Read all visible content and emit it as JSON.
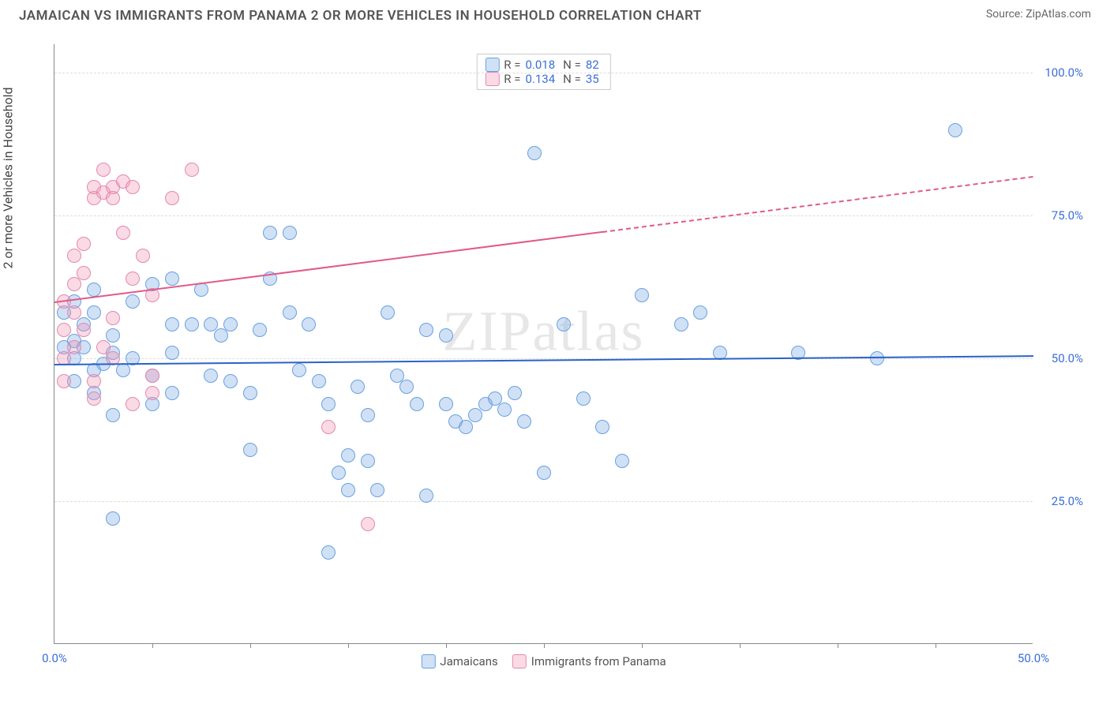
{
  "header": {
    "title": "JAMAICAN VS IMMIGRANTS FROM PANAMA 2 OR MORE VEHICLES IN HOUSEHOLD CORRELATION CHART",
    "source": "Source: ZipAtlas.com"
  },
  "watermark": "ZIPatlas",
  "chart": {
    "type": "scatter",
    "ylabel": "2 or more Vehicles in Household",
    "background_color": "#ffffff",
    "grid_color": "#dddddd",
    "axis_color": "#888888",
    "tick_color": "#3b6fd6",
    "tick_fontsize": 15,
    "label_fontsize": 16,
    "xlim": [
      0,
      50
    ],
    "ylim": [
      0,
      105
    ],
    "yticks": [
      {
        "v": 25,
        "label": "25.0%"
      },
      {
        "v": 50,
        "label": "50.0%"
      },
      {
        "v": 75,
        "label": "75.0%"
      },
      {
        "v": 100,
        "label": "100.0%"
      }
    ],
    "xticks_major": [
      {
        "v": 0,
        "label": "0.0%"
      },
      {
        "v": 50,
        "label": "50.0%"
      }
    ],
    "xticks_minor": [
      5,
      10,
      15,
      20,
      25,
      30,
      35,
      40,
      45
    ],
    "marker_radius": 9,
    "marker_stroke": 1.5,
    "series": [
      {
        "id": "jamaicans",
        "label": "Jamaicans",
        "fill": "rgba(120,170,230,0.35)",
        "stroke": "#6aa0e0",
        "r_value": "0.018",
        "n_value": "82",
        "trend": {
          "x1": 0,
          "y1": 49,
          "x2": 50,
          "y2": 50.5,
          "color": "#2b62c9",
          "solid_to_x": 50
        },
        "points": [
          [
            3,
            22
          ],
          [
            3,
            51
          ],
          [
            2,
            48
          ],
          [
            1,
            53
          ],
          [
            1,
            50
          ],
          [
            1.5,
            56
          ],
          [
            1,
            60
          ],
          [
            2,
            58
          ],
          [
            1.5,
            52
          ],
          [
            2.5,
            49
          ],
          [
            3,
            54
          ],
          [
            4,
            50
          ],
          [
            4,
            60
          ],
          [
            5,
            63
          ],
          [
            6,
            64
          ],
          [
            6,
            56
          ],
          [
            6,
            51
          ],
          [
            5,
            47
          ],
          [
            5,
            42
          ],
          [
            6,
            44
          ],
          [
            7,
            56
          ],
          [
            7.5,
            62
          ],
          [
            8,
            47
          ],
          [
            8,
            56
          ],
          [
            8.5,
            54
          ],
          [
            9,
            46
          ],
          [
            9,
            56
          ],
          [
            10,
            44
          ],
          [
            10,
            34
          ],
          [
            10.5,
            55
          ],
          [
            11,
            64
          ],
          [
            11,
            72
          ],
          [
            12,
            72
          ],
          [
            12,
            58
          ],
          [
            12.5,
            48
          ],
          [
            13,
            56
          ],
          [
            13.5,
            46
          ],
          [
            14,
            42
          ],
          [
            14,
            16
          ],
          [
            14.5,
            30
          ],
          [
            15,
            27
          ],
          [
            15,
            33
          ],
          [
            15.5,
            45
          ],
          [
            16,
            40
          ],
          [
            16,
            32
          ],
          [
            16.5,
            27
          ],
          [
            17,
            58
          ],
          [
            17.5,
            47
          ],
          [
            18,
            45
          ],
          [
            18.5,
            42
          ],
          [
            19,
            26
          ],
          [
            19,
            55
          ],
          [
            20,
            42
          ],
          [
            20,
            54
          ],
          [
            20.5,
            39
          ],
          [
            21,
            38
          ],
          [
            21.5,
            40
          ],
          [
            22,
            42
          ],
          [
            22.5,
            43
          ],
          [
            23,
            41
          ],
          [
            23.5,
            44
          ],
          [
            24,
            39
          ],
          [
            24.5,
            86
          ],
          [
            25,
            30
          ],
          [
            26,
            56
          ],
          [
            27,
            43
          ],
          [
            28,
            38
          ],
          [
            29,
            32
          ],
          [
            30,
            61
          ],
          [
            32,
            56
          ],
          [
            33,
            58
          ],
          [
            34,
            51
          ],
          [
            38,
            51
          ],
          [
            42,
            50
          ],
          [
            46,
            90
          ],
          [
            2,
            44
          ],
          [
            3,
            40
          ],
          [
            1,
            46
          ],
          [
            0.5,
            52
          ],
          [
            0.5,
            58
          ],
          [
            2,
            62
          ],
          [
            3.5,
            48
          ]
        ]
      },
      {
        "id": "panama",
        "label": "Immigrants from Panama",
        "fill": "rgba(240,150,180,0.35)",
        "stroke": "#e389ae",
        "r_value": "0.134",
        "n_value": "35",
        "trend": {
          "x1": 0,
          "y1": 60,
          "x2": 50,
          "y2": 82,
          "color": "#e15a8a",
          "solid_to_x": 28
        },
        "points": [
          [
            0.5,
            55
          ],
          [
            0.5,
            60
          ],
          [
            1,
            63
          ],
          [
            1,
            68
          ],
          [
            1,
            58
          ],
          [
            1.5,
            70
          ],
          [
            1.5,
            65
          ],
          [
            2,
            78
          ],
          [
            2,
            80
          ],
          [
            2.5,
            79
          ],
          [
            2.5,
            83
          ],
          [
            3,
            80
          ],
          [
            3,
            78
          ],
          [
            3.5,
            81
          ],
          [
            4,
            80
          ],
          [
            4,
            64
          ],
          [
            5,
            61
          ],
          [
            5,
            47
          ],
          [
            5,
            44
          ],
          [
            2,
            46
          ],
          [
            2,
            43
          ],
          [
            4,
            42
          ],
          [
            3,
            50
          ],
          [
            3,
            57
          ],
          [
            6,
            78
          ],
          [
            7,
            83
          ],
          [
            14,
            38
          ],
          [
            16,
            21
          ],
          [
            1,
            52
          ],
          [
            1.5,
            55
          ],
          [
            2.5,
            52
          ],
          [
            0.5,
            50
          ],
          [
            0.5,
            46
          ],
          [
            3.5,
            72
          ],
          [
            4.5,
            68
          ]
        ]
      }
    ],
    "r_legend_labels": {
      "r": "R =",
      "n": "N ="
    },
    "bottom_legend_swatch_border": {
      "jamaicans": "#6aa0e0",
      "panama": "#e389ae"
    }
  }
}
